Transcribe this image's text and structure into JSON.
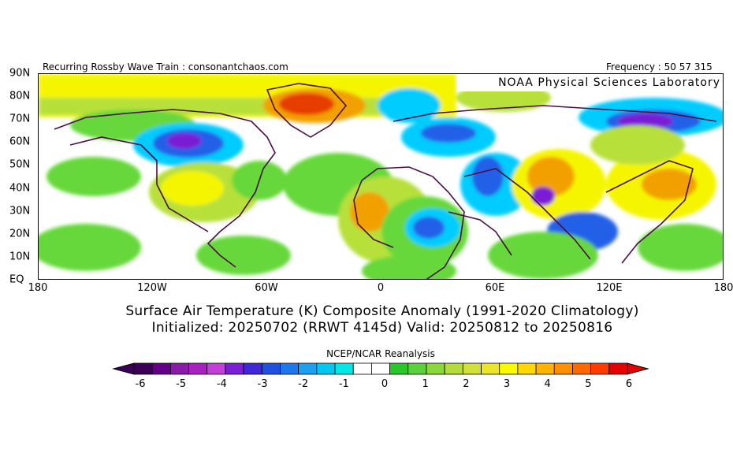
{
  "header": {
    "left_text": "Recurring Rossby Wave Train : consonantchaos.com",
    "right_text": "Frequency : 50 57 315"
  },
  "map": {
    "credit": "NOAA Physical Sciences Laboratory",
    "lat_labels": [
      "90N",
      "80N",
      "70N",
      "60N",
      "50N",
      "40N",
      "30N",
      "20N",
      "10N",
      "EQ"
    ],
    "lon_labels": [
      "180",
      "120W",
      "60W",
      "0",
      "60E",
      "120E",
      "180"
    ],
    "colors": {
      "ocean_base": "#ffffff",
      "land_outline": "#4a0f45",
      "warm_yellow": "#f5f500",
      "warm_orange": "#f2a000",
      "warm_red": "#e63c00",
      "green": "#66d83a",
      "lime": "#b8e03a",
      "cyan": "#00ccff",
      "blue": "#2060e8",
      "purple": "#7a1fd6"
    }
  },
  "title": {
    "line1": "Surface Air Temperature (K) Composite Anomaly (1991-2020 Climatology)",
    "line2": "Initialized: 20250702 (RRWT 4145d) Valid: 20250812 to 20250816"
  },
  "colorbar": {
    "title": "NCEP/NCAR Reanalysis",
    "tick_labels": [
      "-6",
      "-5",
      "-4",
      "-3",
      "-2",
      "-1",
      "0",
      "1",
      "2",
      "3",
      "4",
      "5",
      "6"
    ],
    "colors": [
      "#3b0055",
      "#640088",
      "#8a1aa8",
      "#a820c0",
      "#c040d8",
      "#7a1fd6",
      "#4028d8",
      "#2050e0",
      "#1e78ec",
      "#1ea0f0",
      "#00c8f0",
      "#00e8e8",
      "#ffffff",
      "#ffffff",
      "#28c828",
      "#5ad23c",
      "#8cd83c",
      "#b4dc3c",
      "#d2e03c",
      "#ebe628",
      "#fafa00",
      "#ffd800",
      "#ffb400",
      "#ff9000",
      "#ff6a00",
      "#ff3c00",
      "#e60000"
    ],
    "arrow_left_color": "#3b0055",
    "arrow_right_color": "#e60000"
  }
}
